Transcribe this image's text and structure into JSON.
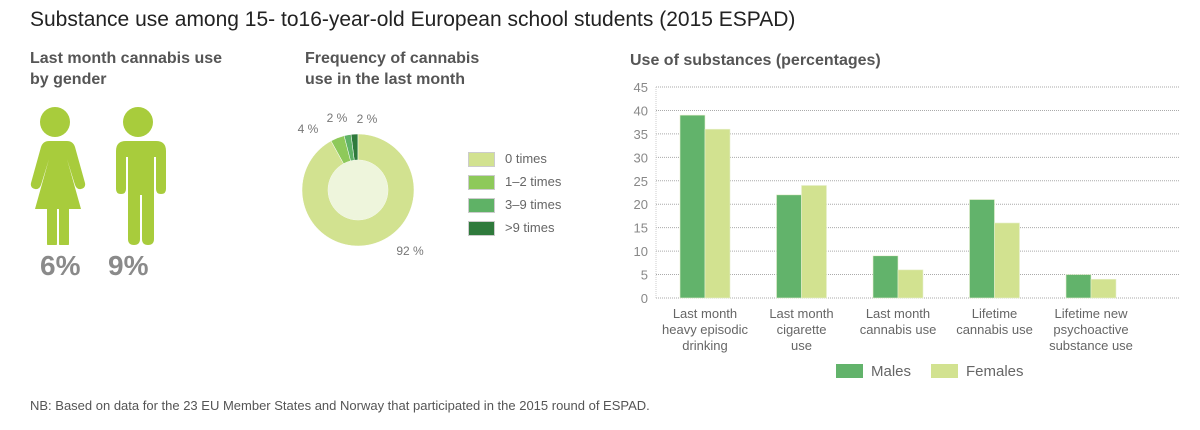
{
  "title": "Substance use among 15- to16-year-old European school students (2015 ESPAD)",
  "gender": {
    "title": "Last month cannabis use by gender",
    "female_value": "6%",
    "male_value": "9%"
  },
  "frequency": {
    "title": "Frequency of cannabis use in the last month",
    "slices": [
      {
        "label": "0 times",
        "value": 92,
        "text": "92 %",
        "color": "#d2e290"
      },
      {
        "label": "1–2 times",
        "value": 4,
        "text": "4 %",
        "color": "#8ec95a"
      },
      {
        "label": "3–9 times",
        "value": 2,
        "text": "2 %",
        "color": "#5fb266"
      },
      {
        "label": ">9 times",
        "value": 2,
        "text": "2 %",
        "color": "#2f7a3c"
      }
    ]
  },
  "chart_data": {
    "type": "bar",
    "title": "Use of substances (percentages)",
    "categories": [
      "Last month heavy episodic drinking",
      "Last month cigarette use",
      "Last month cannabis use",
      "Lifetime cannabis use",
      "Lifetime new psychoactive substance use"
    ],
    "category_lines": [
      [
        "Last month",
        "heavy episodic",
        "drinking"
      ],
      [
        "Last month",
        "cigarette",
        "use"
      ],
      [
        "Last month",
        "cannabis use"
      ],
      [
        "Lifetime",
        "cannabis use"
      ],
      [
        "Lifetime new",
        "psychoactive",
        "substance use"
      ]
    ],
    "series": [
      {
        "name": "Males",
        "values": [
          39,
          22,
          9,
          21,
          5
        ],
        "color": "#62b36b"
      },
      {
        "name": "Females",
        "values": [
          36,
          24,
          6,
          16,
          4
        ],
        "color": "#d2e290"
      }
    ],
    "ylim": [
      0,
      45
    ],
    "yticks": [
      0,
      5,
      10,
      15,
      20,
      25,
      30,
      35,
      40,
      45
    ],
    "grid": true,
    "legend": "bottom"
  },
  "note": "NB: Based on data for the 23 EU Member States and Norway that participated in the 2015 round of ESPAD."
}
